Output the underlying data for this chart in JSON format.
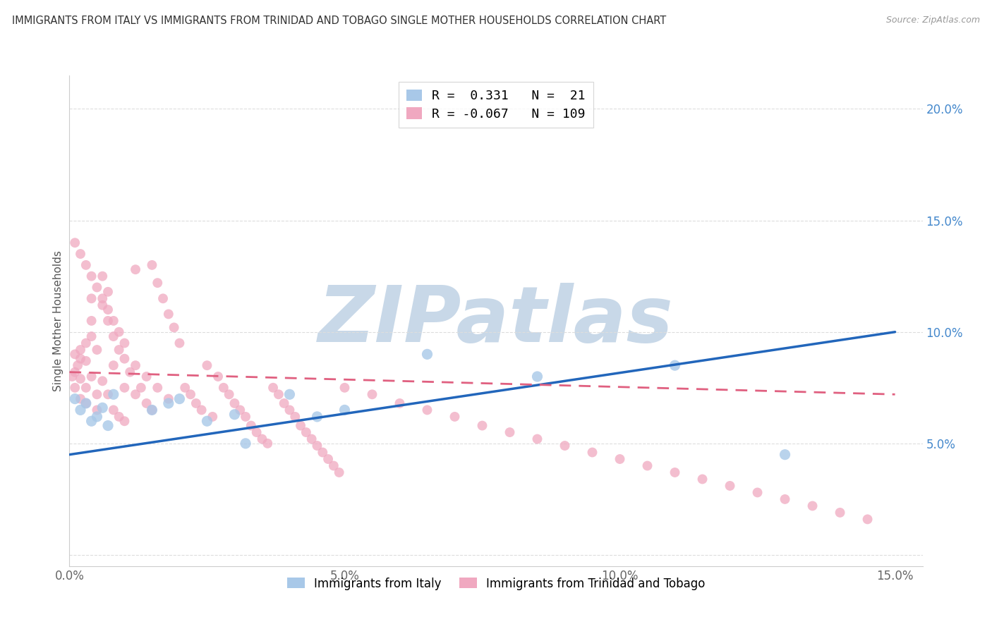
{
  "title": "IMMIGRANTS FROM ITALY VS IMMIGRANTS FROM TRINIDAD AND TOBAGO SINGLE MOTHER HOUSEHOLDS CORRELATION CHART",
  "source": "Source: ZipAtlas.com",
  "ylabel": "Single Mother Households",
  "xlim": [
    0.0,
    0.155
  ],
  "ylim": [
    -0.005,
    0.215
  ],
  "xticks": [
    0.0,
    0.05,
    0.1,
    0.15
  ],
  "xtick_labels": [
    "0.0%",
    "5.0%",
    "10.0%",
    "15.0%"
  ],
  "yticks": [
    0.0,
    0.05,
    0.1,
    0.15,
    0.2
  ],
  "right_ytick_labels": [
    "",
    "5.0%",
    "10.0%",
    "15.0%",
    "20.0%"
  ],
  "italy_color": "#a8c8e8",
  "tt_color": "#f0a8c0",
  "italy_line_color": "#2266bb",
  "tt_line_color": "#e06080",
  "R_italy": 0.331,
  "N_italy": 21,
  "R_tt": -0.067,
  "N_tt": 109,
  "italy_trend_x0": 0.0,
  "italy_trend_y0": 0.045,
  "italy_trend_x1": 0.15,
  "italy_trend_y1": 0.1,
  "tt_trend_x0": 0.0,
  "tt_trend_y0": 0.082,
  "tt_trend_x1": 0.15,
  "tt_trend_y1": 0.072,
  "italy_x": [
    0.001,
    0.002,
    0.003,
    0.004,
    0.005,
    0.006,
    0.007,
    0.008,
    0.015,
    0.018,
    0.02,
    0.025,
    0.03,
    0.032,
    0.04,
    0.045,
    0.05,
    0.065,
    0.085,
    0.11,
    0.13
  ],
  "italy_y": [
    0.07,
    0.065,
    0.068,
    0.06,
    0.062,
    0.066,
    0.058,
    0.072,
    0.065,
    0.068,
    0.07,
    0.06,
    0.063,
    0.05,
    0.072,
    0.062,
    0.065,
    0.09,
    0.08,
    0.085,
    0.045
  ],
  "tt_x": [
    0.0005,
    0.001,
    0.001,
    0.001,
    0.0015,
    0.002,
    0.002,
    0.002,
    0.002,
    0.003,
    0.003,
    0.003,
    0.003,
    0.004,
    0.004,
    0.004,
    0.004,
    0.005,
    0.005,
    0.005,
    0.006,
    0.006,
    0.006,
    0.007,
    0.007,
    0.007,
    0.008,
    0.008,
    0.008,
    0.009,
    0.009,
    0.01,
    0.01,
    0.01,
    0.011,
    0.012,
    0.012,
    0.013,
    0.014,
    0.015,
    0.015,
    0.016,
    0.017,
    0.018,
    0.019,
    0.02,
    0.021,
    0.022,
    0.023,
    0.024,
    0.025,
    0.026,
    0.027,
    0.028,
    0.029,
    0.03,
    0.031,
    0.032,
    0.033,
    0.034,
    0.035,
    0.036,
    0.037,
    0.038,
    0.039,
    0.04,
    0.041,
    0.042,
    0.043,
    0.044,
    0.045,
    0.046,
    0.047,
    0.048,
    0.049,
    0.05,
    0.055,
    0.06,
    0.065,
    0.07,
    0.075,
    0.08,
    0.085,
    0.09,
    0.095,
    0.1,
    0.105,
    0.11,
    0.115,
    0.12,
    0.125,
    0.13,
    0.135,
    0.14,
    0.145,
    0.001,
    0.002,
    0.003,
    0.004,
    0.005,
    0.006,
    0.007,
    0.008,
    0.009,
    0.01,
    0.012,
    0.014,
    0.016,
    0.018
  ],
  "tt_y": [
    0.08,
    0.075,
    0.082,
    0.09,
    0.085,
    0.092,
    0.088,
    0.079,
    0.07,
    0.095,
    0.087,
    0.075,
    0.068,
    0.115,
    0.105,
    0.098,
    0.08,
    0.092,
    0.072,
    0.065,
    0.125,
    0.112,
    0.078,
    0.118,
    0.105,
    0.072,
    0.098,
    0.085,
    0.065,
    0.092,
    0.062,
    0.088,
    0.075,
    0.06,
    0.082,
    0.128,
    0.072,
    0.075,
    0.068,
    0.13,
    0.065,
    0.122,
    0.115,
    0.108,
    0.102,
    0.095,
    0.075,
    0.072,
    0.068,
    0.065,
    0.085,
    0.062,
    0.08,
    0.075,
    0.072,
    0.068,
    0.065,
    0.062,
    0.058,
    0.055,
    0.052,
    0.05,
    0.075,
    0.072,
    0.068,
    0.065,
    0.062,
    0.058,
    0.055,
    0.052,
    0.049,
    0.046,
    0.043,
    0.04,
    0.037,
    0.075,
    0.072,
    0.068,
    0.065,
    0.062,
    0.058,
    0.055,
    0.052,
    0.049,
    0.046,
    0.043,
    0.04,
    0.037,
    0.034,
    0.031,
    0.028,
    0.025,
    0.022,
    0.019,
    0.016,
    0.14,
    0.135,
    0.13,
    0.125,
    0.12,
    0.115,
    0.11,
    0.105,
    0.1,
    0.095,
    0.085,
    0.08,
    0.075,
    0.07
  ],
  "watermark": "ZIPatlas",
  "watermark_color": "#c8d8e8",
  "background_color": "#ffffff",
  "grid_color": "#dddddd",
  "legend_italy_label": "R =  0.331   N =  21",
  "legend_tt_label": "R = -0.067   N = 109",
  "bottom_legend_italy": "Immigrants from Italy",
  "bottom_legend_tt": "Immigrants from Trinidad and Tobago"
}
